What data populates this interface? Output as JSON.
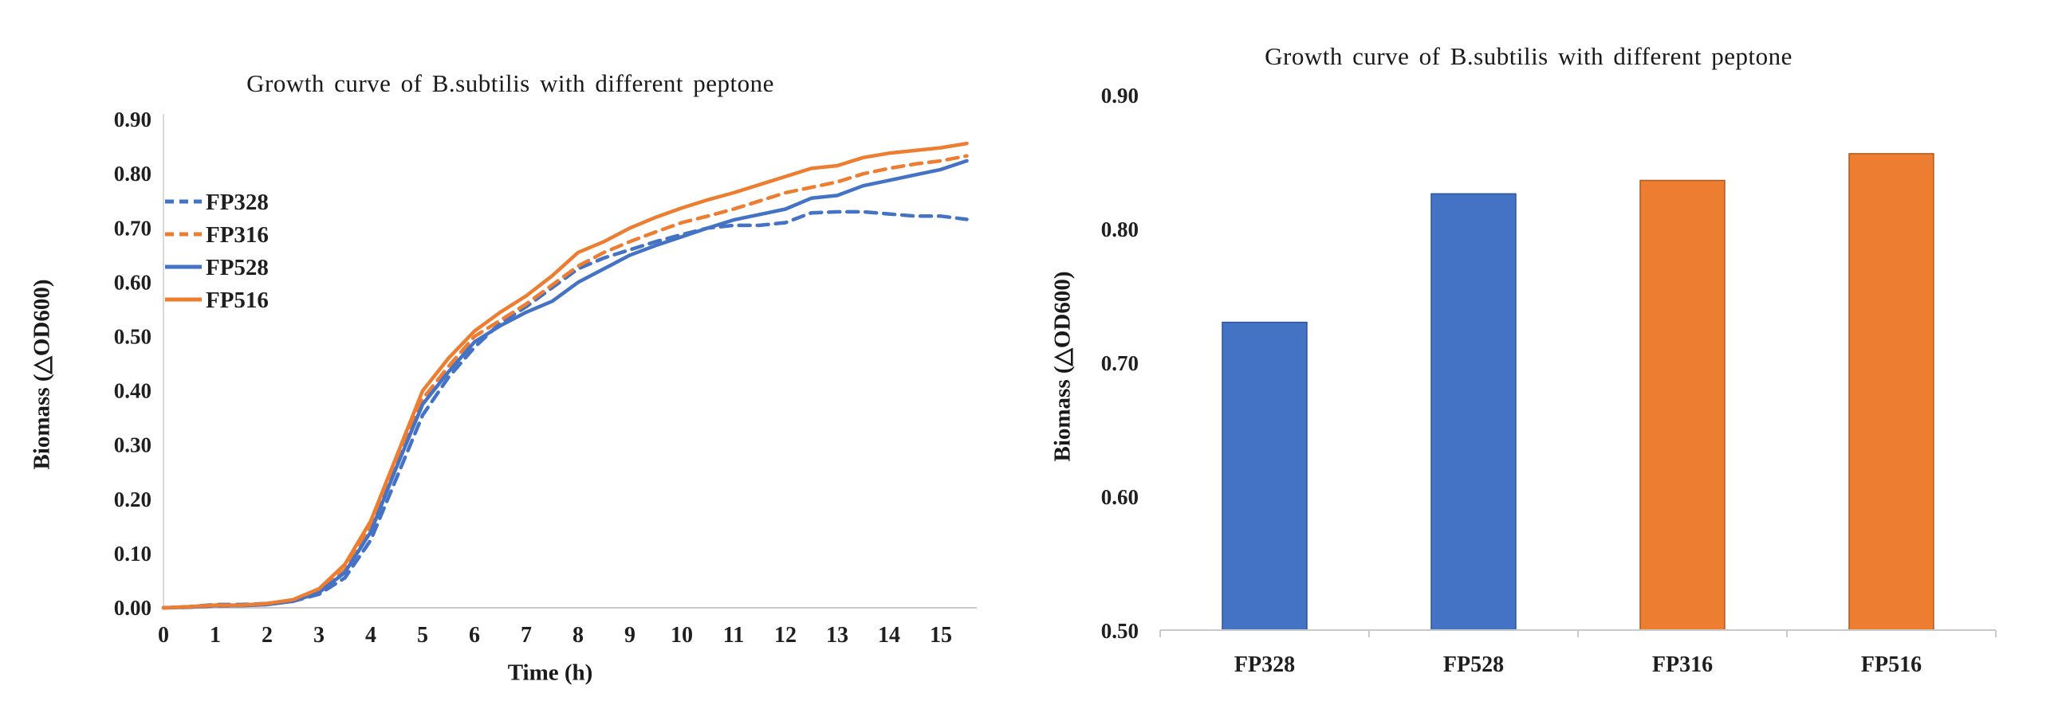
{
  "chart_data": [
    {
      "type": "line",
      "title": "Growth curve of B.subtilis with different peptone",
      "xlabel": "Time (h)",
      "ylabel": "Biomass (△OD600)",
      "xlim": [
        0,
        15.8
      ],
      "ylim": [
        0.0,
        0.9
      ],
      "grid": "off",
      "legend_position": "inside-upper-left",
      "x_start": 0,
      "x_step": 0.5,
      "xticks": [
        {
          "value": 0,
          "label": "0"
        },
        {
          "value": 1,
          "label": "1"
        },
        {
          "value": 2,
          "label": "2"
        },
        {
          "value": 3,
          "label": "3"
        },
        {
          "value": 4,
          "label": "4"
        },
        {
          "value": 5,
          "label": "5"
        },
        {
          "value": 6,
          "label": "6"
        },
        {
          "value": 7,
          "label": "7"
        },
        {
          "value": 8,
          "label": "8"
        },
        {
          "value": 9,
          "label": "9"
        },
        {
          "value": 10,
          "label": "10"
        },
        {
          "value": 11,
          "label": "11"
        },
        {
          "value": 12,
          "label": "12"
        },
        {
          "value": 13,
          "label": "13"
        },
        {
          "value": 14,
          "label": "14"
        },
        {
          "value": 15,
          "label": "15"
        }
      ],
      "yticks": [
        {
          "value": 0.0,
          "label": "0.00"
        },
        {
          "value": 0.1,
          "label": "0.10"
        },
        {
          "value": 0.2,
          "label": "0.20"
        },
        {
          "value": 0.3,
          "label": "0.30"
        },
        {
          "value": 0.4,
          "label": "0.40"
        },
        {
          "value": 0.5,
          "label": "0.50"
        },
        {
          "value": 0.6,
          "label": "0.60"
        },
        {
          "value": 0.7,
          "label": "0.70"
        },
        {
          "value": 0.8,
          "label": "0.80"
        },
        {
          "value": 0.9,
          "label": "0.90"
        }
      ],
      "series": [
        {
          "name": "FP328",
          "color": "#4472C4",
          "dash": true,
          "values": [
            0.0,
            0.002,
            0.006,
            0.006,
            0.008,
            0.012,
            0.025,
            0.055,
            0.125,
            0.24,
            0.355,
            0.425,
            0.48,
            0.525,
            0.555,
            0.59,
            0.625,
            0.645,
            0.66,
            0.675,
            0.688,
            0.7,
            0.705,
            0.705,
            0.71,
            0.728,
            0.73,
            0.73,
            0.726,
            0.722,
            0.722,
            0.716
          ]
        },
        {
          "name": "FP316",
          "color": "#ED7D31",
          "dash": true,
          "values": [
            0.0,
            0.001,
            0.003,
            0.004,
            0.006,
            0.012,
            0.03,
            0.07,
            0.15,
            0.27,
            0.385,
            0.445,
            0.5,
            0.53,
            0.56,
            0.595,
            0.63,
            0.655,
            0.675,
            0.693,
            0.71,
            0.722,
            0.735,
            0.75,
            0.765,
            0.775,
            0.785,
            0.8,
            0.81,
            0.818,
            0.824,
            0.833
          ]
        },
        {
          "name": "FP528",
          "color": "#4472C4",
          "dash": false,
          "values": [
            0.0,
            0.001,
            0.004,
            0.004,
            0.006,
            0.012,
            0.028,
            0.065,
            0.14,
            0.26,
            0.375,
            0.435,
            0.49,
            0.52,
            0.545,
            0.565,
            0.6,
            0.625,
            0.65,
            0.668,
            0.684,
            0.7,
            0.715,
            0.725,
            0.735,
            0.755,
            0.76,
            0.778,
            0.788,
            0.798,
            0.808,
            0.824
          ]
        },
        {
          "name": "FP516",
          "color": "#ED7D31",
          "dash": false,
          "values": [
            0.0,
            0.002,
            0.005,
            0.005,
            0.008,
            0.015,
            0.035,
            0.08,
            0.16,
            0.28,
            0.4,
            0.46,
            0.51,
            0.545,
            0.575,
            0.612,
            0.655,
            0.675,
            0.7,
            0.72,
            0.737,
            0.752,
            0.765,
            0.78,
            0.795,
            0.81,
            0.815,
            0.83,
            0.838,
            0.843,
            0.848,
            0.856
          ]
        }
      ]
    },
    {
      "type": "bar",
      "title": "Growth curve of B.subtilis with different peptone",
      "xlabel": "",
      "ylabel": "Biomass (△OD600)",
      "ylim": [
        0.5,
        0.9
      ],
      "grid": "off",
      "categories": [
        "FP328",
        "FP528",
        "FP316",
        "FP516"
      ],
      "values": [
        0.73,
        0.826,
        0.836,
        0.856
      ],
      "bar_colors": [
        "#4472C4",
        "#4472C4",
        "#ED7D31",
        "#ED7D31"
      ],
      "bar_borders": [
        "#2F5597",
        "#2F5597",
        "#AE5A21",
        "#AE5A21"
      ],
      "yticks": [
        {
          "value": 0.5,
          "label": "0.50"
        },
        {
          "value": 0.6,
          "label": "0.60"
        },
        {
          "value": 0.7,
          "label": "0.70"
        },
        {
          "value": 0.8,
          "label": "0.80"
        },
        {
          "value": 0.9,
          "label": "0.90"
        }
      ]
    }
  ],
  "style": {
    "axis_line_color": "#c9c9c9",
    "y_axis_line_color": "#d9d9d9",
    "text_color": "#1f1f1f"
  }
}
